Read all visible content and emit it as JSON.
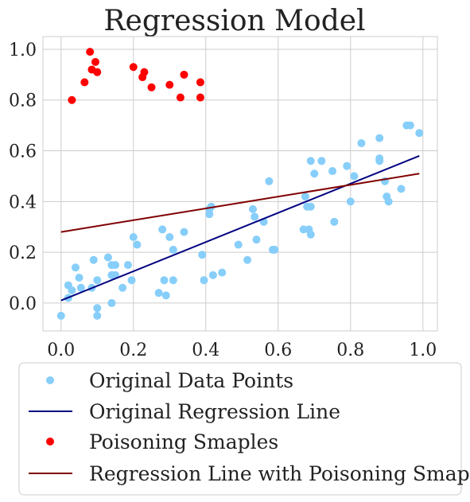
{
  "chart_data": {
    "type": "scatter",
    "title": "Regression Model",
    "xlabel": "",
    "ylabel": "",
    "xlim": [
      -0.05,
      1.04
    ],
    "ylim": [
      -0.11,
      1.05
    ],
    "x_ticks": [
      "0.0",
      "0.2",
      "0.4",
      "0.6",
      "0.8",
      "1.0"
    ],
    "x_tick_values": [
      0.0,
      0.2,
      0.4,
      0.6,
      0.8,
      1.0
    ],
    "y_ticks": [
      "0.0",
      "0.2",
      "0.4",
      "0.6",
      "0.8",
      "1.0"
    ],
    "y_tick_values": [
      0.0,
      0.2,
      0.4,
      0.6,
      0.8,
      1.0
    ],
    "grid": true,
    "legend_position": "bottom, below plot",
    "series": [
      {
        "name": "Original Data Points",
        "kind": "scatter",
        "color": "#87CEFA",
        "points": [
          [
            0.0,
            -0.05
          ],
          [
            0.02,
            0.07
          ],
          [
            0.02,
            0.02
          ],
          [
            0.03,
            0.05
          ],
          [
            0.04,
            0.14
          ],
          [
            0.05,
            0.1
          ],
          [
            0.055,
            0.06
          ],
          [
            0.085,
            0.06
          ],
          [
            0.09,
            0.17
          ],
          [
            0.1,
            0.09
          ],
          [
            0.1,
            -0.02
          ],
          [
            0.1,
            -0.05
          ],
          [
            0.13,
            0.18
          ],
          [
            0.14,
            0.15
          ],
          [
            0.15,
            0.15
          ],
          [
            0.14,
            0.11
          ],
          [
            0.15,
            0.11
          ],
          [
            0.14,
            0.0
          ],
          [
            0.17,
            0.06
          ],
          [
            0.185,
            0.15
          ],
          [
            0.195,
            0.09
          ],
          [
            0.2,
            0.26
          ],
          [
            0.21,
            0.23
          ],
          [
            0.27,
            0.04
          ],
          [
            0.28,
            0.29
          ],
          [
            0.285,
            0.09
          ],
          [
            0.29,
            0.03
          ],
          [
            0.3,
            0.26
          ],
          [
            0.31,
            0.21
          ],
          [
            0.31,
            0.09
          ],
          [
            0.34,
            0.28
          ],
          [
            0.39,
            0.19
          ],
          [
            0.395,
            0.09
          ],
          [
            0.41,
            0.35
          ],
          [
            0.41,
            0.37
          ],
          [
            0.415,
            0.38
          ],
          [
            0.42,
            0.11
          ],
          [
            0.445,
            0.12
          ],
          [
            0.49,
            0.23
          ],
          [
            0.515,
            0.17
          ],
          [
            0.53,
            0.37
          ],
          [
            0.535,
            0.34
          ],
          [
            0.54,
            0.25
          ],
          [
            0.56,
            0.32
          ],
          [
            0.575,
            0.48
          ],
          [
            0.59,
            0.21
          ],
          [
            0.585,
            0.21
          ],
          [
            0.67,
            0.29
          ],
          [
            0.675,
            0.42
          ],
          [
            0.685,
            0.29
          ],
          [
            0.68,
            0.38
          ],
          [
            0.69,
            0.56
          ],
          [
            0.69,
            0.27
          ],
          [
            0.69,
            0.38
          ],
          [
            0.7,
            0.51
          ],
          [
            0.72,
            0.56
          ],
          [
            0.75,
            0.52
          ],
          [
            0.755,
            0.32
          ],
          [
            0.79,
            0.54
          ],
          [
            0.8,
            0.4
          ],
          [
            0.81,
            0.5
          ],
          [
            0.83,
            0.63
          ],
          [
            0.88,
            0.65
          ],
          [
            0.88,
            0.57
          ],
          [
            0.88,
            0.56
          ],
          [
            0.895,
            0.48
          ],
          [
            0.9,
            0.42
          ],
          [
            0.905,
            0.4
          ],
          [
            0.94,
            0.45
          ],
          [
            0.955,
            0.7
          ],
          [
            0.965,
            0.7
          ],
          [
            0.99,
            0.67
          ]
        ]
      },
      {
        "name": "Original Regression Line",
        "kind": "line",
        "color": "#000080",
        "points": [
          [
            0.0,
            0.01
          ],
          [
            0.99,
            0.58
          ]
        ]
      },
      {
        "name": "Poisoning Smaples",
        "kind": "scatter",
        "color": "#FF0000",
        "points": [
          [
            0.03,
            0.8
          ],
          [
            0.065,
            0.87
          ],
          [
            0.08,
            0.99
          ],
          [
            0.085,
            0.92
          ],
          [
            0.095,
            0.95
          ],
          [
            0.1,
            0.91
          ],
          [
            0.2,
            0.93
          ],
          [
            0.225,
            0.89
          ],
          [
            0.23,
            0.91
          ],
          [
            0.25,
            0.85
          ],
          [
            0.3,
            0.86
          ],
          [
            0.33,
            0.81
          ],
          [
            0.34,
            0.9
          ],
          [
            0.385,
            0.87
          ],
          [
            0.385,
            0.81
          ]
        ]
      },
      {
        "name": "Regression Line with Poisoning Smaples",
        "kind": "line",
        "color": "#800000",
        "points": [
          [
            0.0,
            0.28
          ],
          [
            0.99,
            0.51
          ]
        ]
      }
    ]
  }
}
